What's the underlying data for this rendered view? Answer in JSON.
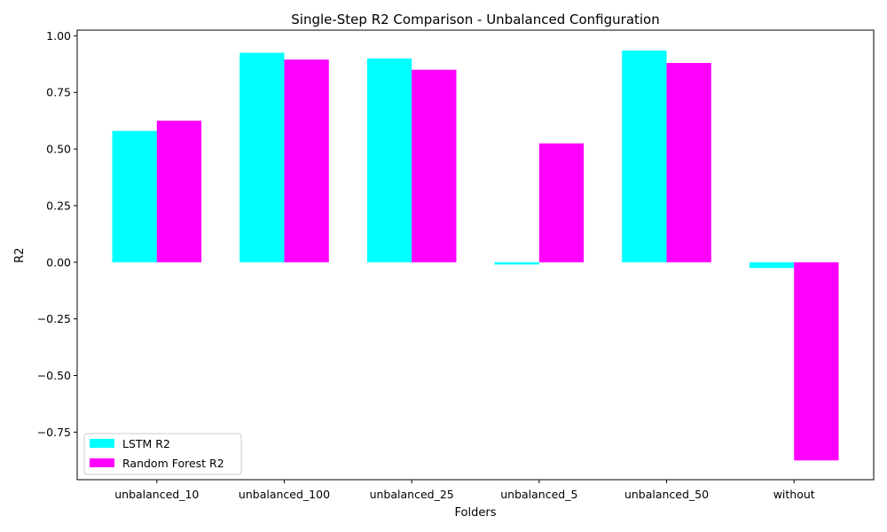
{
  "chart_data": {
    "type": "bar",
    "title": "Single-Step R2 Comparison - Unbalanced Configuration",
    "xlabel": "Folders",
    "ylabel": "R2",
    "categories": [
      "unbalanced_10",
      "unbalanced_100",
      "unbalanced_25",
      "unbalanced_5",
      "unbalanced_50",
      "without"
    ],
    "series": [
      {
        "name": "LSTM R2",
        "color": "#00ffff",
        "values": [
          0.58,
          0.925,
          0.9,
          -0.01,
          0.935,
          -0.025
        ]
      },
      {
        "name": "Random Forest R2",
        "color": "#ff00ff",
        "values": [
          0.625,
          0.895,
          0.85,
          0.525,
          0.88,
          -0.875
        ]
      }
    ],
    "ylim": [
      -0.96,
      1.025
    ],
    "yticks": [
      -0.75,
      -0.5,
      -0.25,
      0.0,
      0.25,
      0.5,
      0.75,
      1.0
    ],
    "ytick_labels": [
      "−0.75",
      "−0.50",
      "−0.25",
      "0.00",
      "0.25",
      "0.50",
      "0.75",
      "1.00"
    ],
    "legend_position": "lower-left",
    "grid": false
  }
}
